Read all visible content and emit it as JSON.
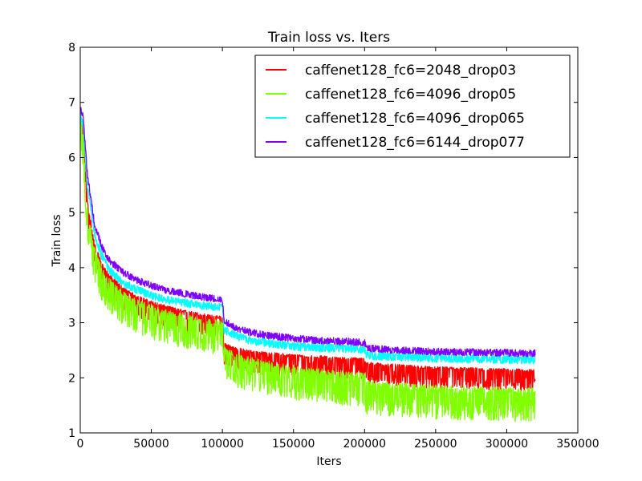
{
  "chart_data": {
    "type": "line",
    "title": "Train loss  vs. Iters",
    "xlabel": "Iters",
    "ylabel": "Train loss",
    "xlim": [
      0,
      350000
    ],
    "ylim": [
      1,
      8
    ],
    "x_ticks": [
      0,
      50000,
      100000,
      150000,
      200000,
      250000,
      300000,
      350000
    ],
    "y_ticks": [
      1,
      2,
      3,
      4,
      5,
      6,
      7,
      8
    ],
    "x_tick_labels": [
      "0",
      "50000",
      "100000",
      "150000",
      "200000",
      "250000",
      "300000",
      "350000"
    ],
    "y_tick_labels": [
      "1",
      "2",
      "3",
      "4",
      "5",
      "6",
      "7",
      "8"
    ],
    "grid": false,
    "legend_position": "top-right",
    "x": [
      0,
      2000,
      5000,
      10000,
      15000,
      20000,
      30000,
      40000,
      50000,
      60000,
      70000,
      80000,
      90000,
      99000,
      100000,
      101000,
      105000,
      110000,
      120000,
      130000,
      140000,
      150000,
      160000,
      170000,
      180000,
      190000,
      199000,
      200000,
      201000,
      210000,
      220000,
      230000,
      240000,
      250000,
      260000,
      270000,
      280000,
      290000,
      300000,
      310000,
      320000
    ],
    "series": [
      {
        "name": "caffenet128_fc6=2048_drop03",
        "color": "#ff0000",
        "band": [
          0.35,
          0.05
        ],
        "values": [
          6.8,
          6.5,
          5.2,
          4.4,
          4.05,
          3.85,
          3.6,
          3.45,
          3.35,
          3.27,
          3.2,
          3.15,
          3.1,
          3.07,
          3.05,
          2.6,
          2.55,
          2.5,
          2.45,
          2.42,
          2.4,
          2.38,
          2.36,
          2.35,
          2.33,
          2.32,
          2.31,
          2.31,
          2.24,
          2.22,
          2.2,
          2.18,
          2.17,
          2.15,
          2.15,
          2.14,
          2.13,
          2.12,
          2.12,
          2.11,
          2.1
        ]
      },
      {
        "name": "caffenet128_fc6=4096_drop05",
        "color": "#80ff00",
        "band": [
          0.5,
          0.12
        ],
        "values": [
          6.7,
          6.3,
          5.0,
          4.25,
          3.9,
          3.7,
          3.45,
          3.3,
          3.2,
          3.12,
          3.05,
          3.0,
          2.95,
          2.92,
          2.9,
          2.45,
          2.4,
          2.32,
          2.25,
          2.2,
          2.15,
          2.1,
          2.07,
          2.04,
          2.01,
          1.99,
          1.97,
          1.97,
          1.85,
          1.82,
          1.8,
          1.78,
          1.76,
          1.75,
          1.74,
          1.73,
          1.72,
          1.72,
          1.71,
          1.7,
          1.7
        ]
      },
      {
        "name": "caffenet128_fc6=4096_drop065",
        "color": "#00ffff",
        "band": [
          0.1,
          0.05
        ],
        "values": [
          6.85,
          6.6,
          5.5,
          4.65,
          4.25,
          4.0,
          3.75,
          3.62,
          3.52,
          3.45,
          3.4,
          3.36,
          3.32,
          3.3,
          3.3,
          2.9,
          2.85,
          2.78,
          2.7,
          2.66,
          2.63,
          2.6,
          2.58,
          2.57,
          2.56,
          2.55,
          2.54,
          2.54,
          2.44,
          2.42,
          2.41,
          2.4,
          2.39,
          2.38,
          2.38,
          2.37,
          2.37,
          2.36,
          2.36,
          2.35,
          2.35
        ]
      },
      {
        "name": "caffenet128_fc6=6144_drop077",
        "color": "#8000ff",
        "band": [
          0.07,
          0.06
        ],
        "values": [
          6.9,
          6.75,
          5.7,
          4.8,
          4.4,
          4.15,
          3.92,
          3.78,
          3.68,
          3.6,
          3.55,
          3.5,
          3.46,
          3.44,
          3.44,
          3.05,
          2.98,
          2.9,
          2.83,
          2.78,
          2.75,
          2.72,
          2.7,
          2.68,
          2.67,
          2.66,
          2.65,
          2.65,
          2.55,
          2.53,
          2.51,
          2.5,
          2.49,
          2.48,
          2.48,
          2.47,
          2.47,
          2.46,
          2.46,
          2.45,
          2.45
        ]
      }
    ]
  }
}
